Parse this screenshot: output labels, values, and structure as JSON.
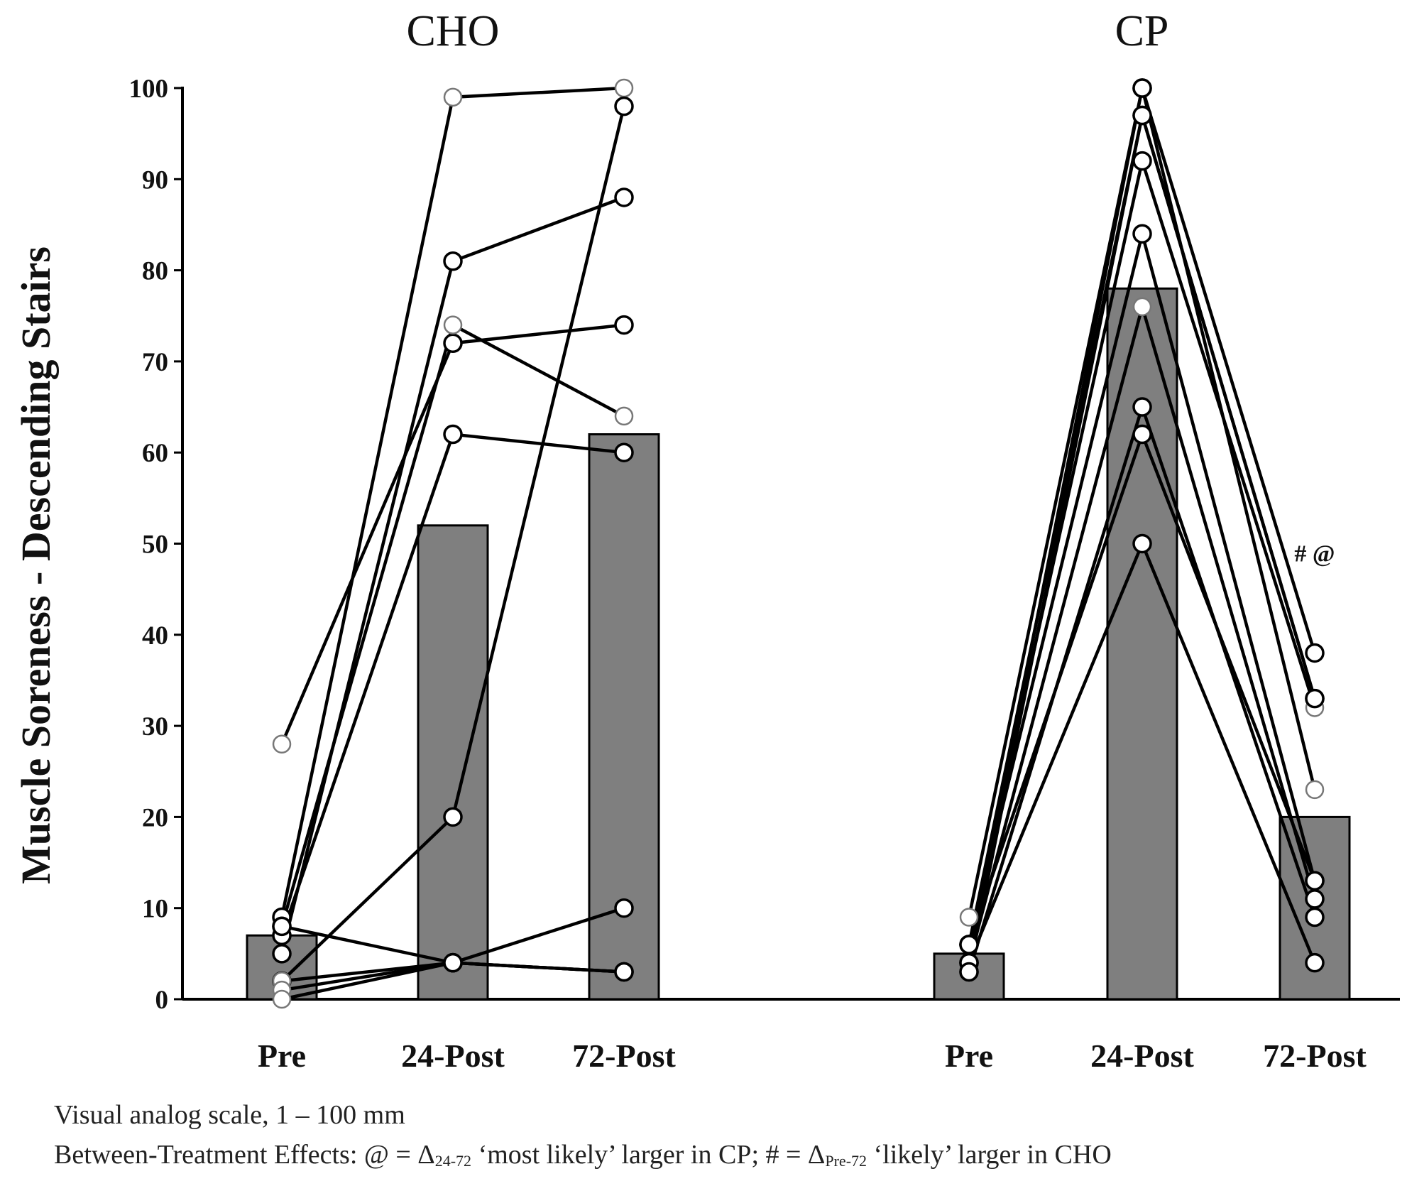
{
  "chart_data": {
    "type": "bar",
    "ylabel": "Muscle Soreness - Descending Stairs",
    "ylim": [
      0,
      100
    ],
    "yticks": [
      0,
      10,
      20,
      30,
      40,
      50,
      60,
      70,
      80,
      90,
      100
    ],
    "grid": false,
    "groups": [
      {
        "title": "CHO",
        "categories": [
          "Pre",
          "24-Post",
          "72-Post"
        ],
        "bar_values": [
          7,
          52,
          62
        ],
        "subjects": [
          [
            28,
            72,
            74
          ],
          [
            9,
            99,
            100
          ],
          [
            8,
            74,
            64
          ],
          [
            7,
            62,
            60
          ],
          [
            5,
            81,
            88
          ],
          [
            2,
            20,
            98
          ],
          [
            2,
            4,
            10
          ],
          [
            8,
            4,
            3
          ],
          [
            1,
            4,
            3
          ],
          [
            0,
            4,
            3
          ]
        ],
        "light_points": [
          [
            0,
            0
          ],
          [
            1,
            1
          ],
          [
            2,
            1
          ],
          [
            1,
            2
          ],
          [
            2,
            2
          ],
          [
            0,
            6
          ],
          [
            0,
            8
          ],
          [
            0,
            9
          ]
        ]
      },
      {
        "title": "CP",
        "categories": [
          "Pre",
          "24-Post",
          "72-Post"
        ],
        "bar_values": [
          5,
          78,
          20
        ],
        "subjects": [
          [
            9,
            100,
            38
          ],
          [
            6,
            97,
            33
          ],
          [
            6,
            92,
            32
          ],
          [
            4,
            100,
            23
          ],
          [
            6,
            84,
            13
          ],
          [
            4,
            76,
            11
          ],
          [
            3,
            65,
            9
          ],
          [
            6,
            62,
            13
          ],
          [
            4,
            50,
            4
          ],
          [
            3,
            97,
            33
          ]
        ],
        "light_points": [
          [
            0,
            0
          ],
          [
            2,
            2
          ],
          [
            2,
            3
          ],
          [
            1,
            5
          ]
        ]
      }
    ],
    "annotations": [
      {
        "text": "# @",
        "group": 1,
        "category": 2,
        "y": 49
      }
    ]
  },
  "captions": {
    "line1": "Visual analog scale, 1 – 100 mm",
    "line2_pre": "Between-Treatment Effects: @ = Δ",
    "line2_sub1": "24-72",
    "line2_mid": " ‘most likely’ larger in CP; # = Δ",
    "line2_sub2": "Pre-72",
    "line2_post": " ‘likely’ larger in CHO"
  }
}
